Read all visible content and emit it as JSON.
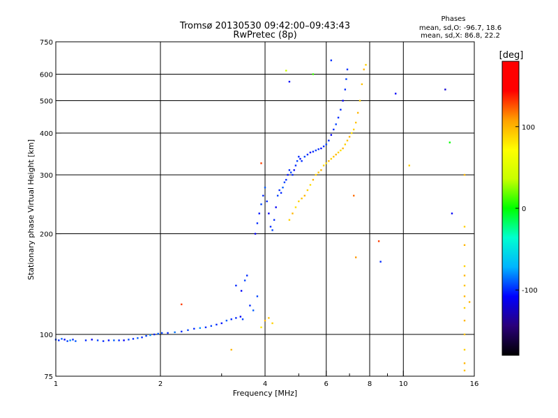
{
  "chart_data": {
    "type": "scatter",
    "title": "Tromsø 20130530 09:42:00–09:43:43",
    "subtitle": "RwPretec (8p)",
    "xlabel": "Frequency [MHz]",
    "ylabel": "Stationary phase Virtual Height [km]",
    "x_scale": "log",
    "y_scale": "log",
    "xlim": [
      1,
      16
    ],
    "ylim": [
      75,
      750
    ],
    "x_ticks": [
      1,
      2,
      4,
      6,
      8,
      10,
      16
    ],
    "x_minor_ticks": [
      3,
      5,
      7,
      9
    ],
    "y_ticks": [
      75,
      100,
      200,
      300,
      400,
      500,
      600,
      750
    ],
    "grid": true,
    "phases_box": {
      "title": "Phases",
      "line_o": "mean, sd,O: -96.7, 18.6",
      "line_x": "mean, sd,X: 86.8, 22.2"
    },
    "colorbar": {
      "label": "[deg]",
      "range": [
        -180,
        180
      ],
      "ticks": [
        100,
        0,
        -100
      ],
      "stops": [
        "#000000",
        "#2a007a",
        "#0000ff",
        "#00b4ff",
        "#00ffd0",
        "#00ff00",
        "#c8ff00",
        "#ffff00",
        "#ffa000",
        "#ff0000",
        "#ff0000"
      ]
    },
    "series": [
      {
        "points": [
          [
            1.0,
            96.5,
            -95
          ],
          [
            1.02,
            96,
            -100
          ],
          [
            1.04,
            97,
            -90
          ],
          [
            1.06,
            96.5,
            -110
          ],
          [
            1.08,
            95.5,
            -95
          ],
          [
            1.1,
            96,
            -80
          ],
          [
            1.12,
            96.5,
            -100
          ],
          [
            1.14,
            95.5,
            -90
          ],
          [
            1.22,
            96,
            -100
          ],
          [
            1.27,
            96.5,
            -110
          ],
          [
            1.32,
            96,
            -95
          ],
          [
            1.37,
            95.5,
            -100
          ],
          [
            1.42,
            96,
            -105
          ],
          [
            1.47,
            96,
            -90
          ],
          [
            1.52,
            96,
            -100
          ],
          [
            1.57,
            96,
            -110
          ],
          [
            1.62,
            96.5,
            -95
          ],
          [
            1.67,
            97,
            -100
          ],
          [
            1.72,
            97.5,
            -90
          ],
          [
            1.77,
            98,
            -100
          ],
          [
            1.82,
            99,
            -95
          ],
          [
            1.87,
            99.5,
            -80
          ],
          [
            1.92,
            100,
            -100
          ],
          [
            1.97,
            100.5,
            -90
          ],
          [
            2.02,
            101,
            -95
          ],
          [
            2.1,
            101,
            -100
          ],
          [
            2.2,
            101.5,
            -85
          ],
          [
            2.3,
            102,
            -100
          ],
          [
            2.4,
            103,
            -95
          ],
          [
            2.5,
            104,
            -100
          ],
          [
            2.6,
            104.5,
            -80
          ],
          [
            2.7,
            105,
            -100
          ],
          [
            2.8,
            106,
            -95
          ],
          [
            2.9,
            107,
            -100
          ],
          [
            3.0,
            108,
            -105
          ],
          [
            3.1,
            110,
            -90
          ],
          [
            3.2,
            111,
            -100
          ],
          [
            3.3,
            112,
            -100
          ],
          [
            3.4,
            113,
            -110
          ],
          [
            3.45,
            111,
            -95
          ],
          [
            3.3,
            140,
            -100
          ],
          [
            3.42,
            135,
            -110
          ],
          [
            3.5,
            145,
            -95
          ],
          [
            3.55,
            150,
            -100
          ],
          [
            3.62,
            122,
            -100
          ],
          [
            3.7,
            118,
            -90
          ],
          [
            3.8,
            130,
            -95
          ],
          [
            3.75,
            200,
            -110
          ],
          [
            3.8,
            215,
            -100
          ],
          [
            3.85,
            230,
            -105
          ],
          [
            3.9,
            245,
            -95
          ],
          [
            3.95,
            260,
            -100
          ],
          [
            4.0,
            275,
            -90
          ],
          [
            4.05,
            250,
            -100
          ],
          [
            4.1,
            230,
            -110
          ],
          [
            4.15,
            210,
            -100
          ],
          [
            4.2,
            205,
            -95
          ],
          [
            4.25,
            220,
            -100
          ],
          [
            4.3,
            240,
            -110
          ],
          [
            4.35,
            260,
            -95
          ],
          [
            4.4,
            270,
            -100
          ],
          [
            4.45,
            265,
            -100
          ],
          [
            4.5,
            275,
            -90
          ],
          [
            4.55,
            285,
            -95
          ],
          [
            4.6,
            290,
            -100
          ],
          [
            4.65,
            300,
            -105
          ],
          [
            4.7,
            310,
            -100
          ],
          [
            4.75,
            305,
            -95
          ],
          [
            4.8,
            300,
            -100
          ],
          [
            4.85,
            310,
            -110
          ],
          [
            4.9,
            320,
            -100
          ],
          [
            4.95,
            330,
            -95
          ],
          [
            5.0,
            340,
            -100
          ],
          [
            5.05,
            335,
            -105
          ],
          [
            5.1,
            330,
            -100
          ],
          [
            5.2,
            340,
            -95
          ],
          [
            5.3,
            345,
            -100
          ],
          [
            5.4,
            350,
            -110
          ],
          [
            5.5,
            352,
            -100
          ],
          [
            5.6,
            355,
            -95
          ],
          [
            5.7,
            358,
            -100
          ],
          [
            5.8,
            360,
            -105
          ],
          [
            5.9,
            365,
            -100
          ],
          [
            6.0,
            370,
            -95
          ],
          [
            6.1,
            380,
            -100
          ],
          [
            6.2,
            395,
            -110
          ],
          [
            6.3,
            410,
            -100
          ],
          [
            6.4,
            425,
            -95
          ],
          [
            6.5,
            445,
            -100
          ],
          [
            6.6,
            470,
            -100
          ],
          [
            6.7,
            500,
            -110
          ],
          [
            6.8,
            540,
            -100
          ],
          [
            6.85,
            580,
            -95
          ],
          [
            6.9,
            620,
            -100
          ],
          [
            3.9,
            105,
            80
          ],
          [
            4.0,
            110,
            100
          ],
          [
            4.1,
            112,
            95
          ],
          [
            4.2,
            108,
            90
          ],
          [
            4.7,
            220,
            90
          ],
          [
            4.8,
            230,
            100
          ],
          [
            4.9,
            240,
            85
          ],
          [
            5.0,
            250,
            90
          ],
          [
            5.1,
            255,
            95
          ],
          [
            5.2,
            260,
            100
          ],
          [
            5.3,
            270,
            90
          ],
          [
            5.4,
            280,
            85
          ],
          [
            5.5,
            290,
            100
          ],
          [
            5.6,
            300,
            90
          ],
          [
            5.7,
            305,
            95
          ],
          [
            5.8,
            310,
            100
          ],
          [
            5.9,
            320,
            90
          ],
          [
            6.0,
            325,
            85
          ],
          [
            6.1,
            330,
            100
          ],
          [
            6.2,
            335,
            90
          ],
          [
            6.3,
            340,
            95
          ],
          [
            6.4,
            345,
            100
          ],
          [
            6.5,
            350,
            90
          ],
          [
            6.6,
            355,
            85
          ],
          [
            6.7,
            360,
            100
          ],
          [
            6.8,
            370,
            90
          ],
          [
            6.9,
            380,
            95
          ],
          [
            7.0,
            390,
            100
          ],
          [
            7.1,
            400,
            85
          ],
          [
            7.2,
            410,
            90
          ],
          [
            7.3,
            430,
            95
          ],
          [
            7.4,
            460,
            100
          ],
          [
            7.5,
            500,
            90
          ],
          [
            7.6,
            560,
            95
          ],
          [
            7.7,
            620,
            100
          ],
          [
            7.8,
            640,
            90
          ],
          [
            4.6,
            615,
            40
          ],
          [
            4.7,
            570,
            -110
          ],
          [
            5.5,
            600,
            10
          ],
          [
            6.2,
            660,
            -100
          ],
          [
            7.2,
            260,
            120
          ],
          [
            7.3,
            170,
            110
          ],
          [
            8.5,
            190,
            130
          ],
          [
            8.6,
            165,
            -100
          ],
          [
            9.5,
            525,
            -110
          ],
          [
            10.4,
            320,
            90
          ],
          [
            13.2,
            540,
            -120
          ],
          [
            13.6,
            375,
            0
          ],
          [
            13.8,
            230,
            -110
          ],
          [
            15.0,
            300,
            100
          ],
          [
            15.0,
            210,
            90
          ],
          [
            15.0,
            185,
            100
          ],
          [
            15.0,
            160,
            90
          ],
          [
            15.0,
            150,
            100
          ],
          [
            15.0,
            140,
            95
          ],
          [
            15.0,
            130,
            100
          ],
          [
            15.0,
            120,
            90
          ],
          [
            15.0,
            110,
            100
          ],
          [
            15.0,
            100,
            95
          ],
          [
            15.0,
            90,
            90
          ],
          [
            15.0,
            82,
            100
          ],
          [
            15.0,
            78,
            95
          ],
          [
            15.5,
            125,
            100
          ],
          [
            3.2,
            90,
            100
          ],
          [
            2.3,
            123,
            130
          ],
          [
            3.9,
            325,
            130
          ]
        ]
      }
    ]
  }
}
